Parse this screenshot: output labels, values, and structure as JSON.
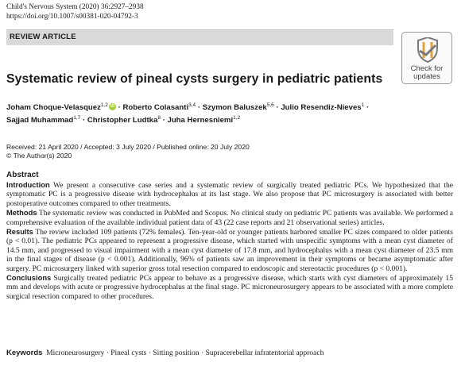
{
  "header": {
    "journal": "Child's Nervous System (2020) 36:2927–2938",
    "doi": "https://doi.org/10.1007/s00381-020-04792-3",
    "article_type": "REVIEW ARTICLE",
    "check_badge": {
      "line1": "Check for",
      "line2": "updates",
      "icon": "check-for-updates-icon"
    }
  },
  "title": "Systematic review of pineal cysts surgery in pediatric patients",
  "authors": [
    {
      "name": "Joham Choque-Velasquez",
      "sup": "1,2",
      "orcid": true
    },
    {
      "name": "Roberto Colasanti",
      "sup": "3,4"
    },
    {
      "name": "Szymon Baluszek",
      "sup": "5,6"
    },
    {
      "name": "Julio Resendiz-Nieves",
      "sup": "1"
    },
    {
      "name": "Sajjad Muhammad",
      "sup": "1,7"
    },
    {
      "name": "Christopher Ludtka",
      "sup": "8"
    },
    {
      "name": "Juha Hernesniemi",
      "sup": "1,2"
    }
  ],
  "separator": "·",
  "dates": "Received: 21 April 2020 / Accepted: 3 July 2020 / Published online: 20 July 2020",
  "copyright": "© The Author(s) 2020",
  "abstract": {
    "heading": "Abstract",
    "sections": [
      {
        "label": "Introduction",
        "text": "We present a consecutive case series and a systematic review of surgically treated pediatric PCs. We hypothesized that the symptomatic PC is a progressive disease with hydrocephalus at its last stage. We also propose that PC microsurgery is associated with better postoperative outcomes compared to other treatments."
      },
      {
        "label": "Methods",
        "text": "The systematic review was conducted in PubMed and Scopus. No clinical study on pediatric PC patients was available. We performed a comprehensive evaluation of the available individual patient data of 43 (22 case reports and 21 observational series) articles."
      },
      {
        "label": "Results",
        "text": "The review included 109 patients (72% females). Ten-year-old or younger patients harbored smaller PC sizes compared to older patients (p < 0.01). The pediatric PCs appeared to represent a progressive disease, which started with unspecific symptoms with a mean cyst diameter of 14.5 mm, and progressed to visual impairment with a mean cyst diameter of 17.8 mm, and hydrocephalus with a mean cyst diameter of 23.5 mm in the final stages of disease (p < 0.001). Additionally, 96% of patients saw an improvement in their symptoms or became asymptomatic after surgery. PC microsurgery linked with superior gross total resection compared to endoscopic and stereotactic procedures (p < 0.001)."
      },
      {
        "label": "Conclusions",
        "text": "Surgically treated pediatric PCs appear to behave as a progressive disease, which starts with cyst diameters of approximately 15 mm and develops with acute or progressive hydrocephalus at the final stage. PC microneurosurgery appears to be associated with a more complete surgical resection compared to other procedures."
      }
    ]
  },
  "keywords": {
    "label": "Keywords",
    "items": [
      "Microneurosurgery",
      "Pineal cysts",
      "Sitting position",
      "Supracerebellar infratentorial approach"
    ]
  }
}
